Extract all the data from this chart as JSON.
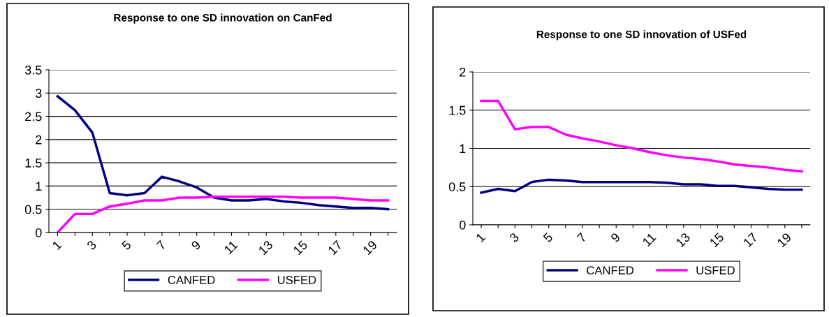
{
  "chart_data": [
    {
      "type": "line",
      "title": "Response to one SD innovation on CanFed",
      "categories": [
        "1",
        null,
        "3",
        null,
        "5",
        null,
        "7",
        null,
        "9",
        null,
        "11",
        null,
        "13",
        null,
        "15",
        null,
        "17",
        null,
        "19",
        null
      ],
      "series": [
        {
          "name": "CANFED",
          "color": "#000080",
          "values": [
            2.93,
            2.63,
            2.15,
            0.85,
            0.8,
            0.85,
            1.2,
            1.1,
            0.97,
            0.75,
            0.69,
            0.69,
            0.72,
            0.67,
            0.64,
            0.59,
            0.56,
            0.53,
            0.53,
            0.5
          ]
        },
        {
          "name": "USFED",
          "color": "#ff00ff",
          "values": [
            0,
            0.4,
            0.4,
            0.56,
            0.62,
            0.69,
            0.69,
            0.75,
            0.75,
            0.77,
            0.77,
            0.77,
            0.77,
            0.77,
            0.75,
            0.75,
            0.75,
            0.72,
            0.69,
            0.69
          ]
        }
      ],
      "ylim": [
        0,
        3.5
      ],
      "yticks": [
        0,
        0.5,
        1,
        1.5,
        2,
        2.5,
        3,
        3.5
      ],
      "grid": "y",
      "legend": "bottom",
      "marker": "none",
      "line_style": "solid"
    },
    {
      "type": "line",
      "title": "Response to one SD innovation of USFed",
      "categories": [
        "1",
        null,
        "3",
        null,
        "5",
        null,
        "7",
        null,
        "9",
        null,
        "11",
        null,
        "13",
        null,
        "15",
        null,
        "17",
        null,
        "19",
        null
      ],
      "series": [
        {
          "name": "CANFED",
          "color": "#000080",
          "values": [
            0.42,
            0.47,
            0.44,
            0.56,
            0.59,
            0.58,
            0.56,
            0.56,
            0.56,
            0.56,
            0.56,
            0.55,
            0.53,
            0.53,
            0.51,
            0.51,
            0.49,
            0.47,
            0.46,
            0.46
          ]
        },
        {
          "name": "USFED",
          "color": "#ff00ff",
          "values": [
            1.62,
            1.62,
            1.25,
            1.28,
            1.28,
            1.18,
            1.13,
            1.09,
            1.04,
            1.0,
            0.95,
            0.91,
            0.88,
            0.86,
            0.83,
            0.79,
            0.77,
            0.75,
            0.72,
            0.7
          ]
        }
      ],
      "ylim": [
        0,
        2
      ],
      "yticks": [
        0,
        0.5,
        1,
        1.5,
        2
      ],
      "grid": "y",
      "legend": "bottom",
      "marker": "none",
      "line_style": "solid"
    }
  ]
}
